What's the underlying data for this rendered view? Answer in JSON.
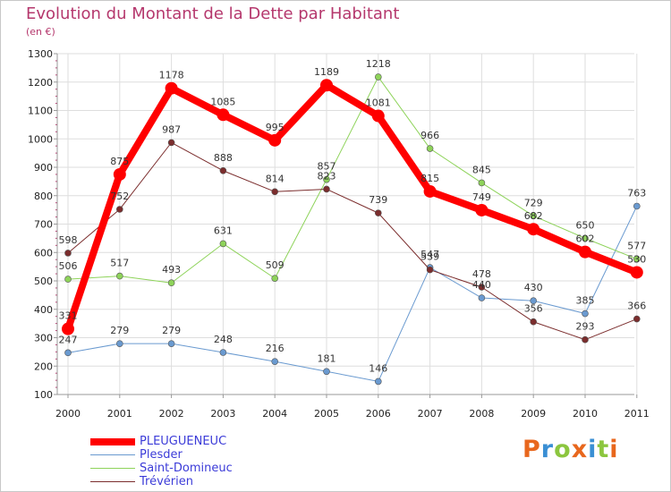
{
  "title": "Evolution du Montant de la Dette par Habitant",
  "subtitle": "(en €)",
  "brand": {
    "text": "Proxiti",
    "letter_colors": [
      "#e8671d",
      "#3a8fd4",
      "#8cc63f",
      "#e8671d",
      "#3a8fd4",
      "#8cc63f",
      "#e8671d"
    ]
  },
  "chart_data": {
    "type": "line",
    "x": [
      "2000",
      "2001",
      "2002",
      "2003",
      "2004",
      "2005",
      "2006",
      "2007",
      "2008",
      "2009",
      "2010",
      "2011"
    ],
    "y_ticks": [
      "100",
      "200",
      "300",
      "400",
      "500",
      "600",
      "700",
      "800",
      "900",
      "1000",
      "1100",
      "1200",
      "1300"
    ],
    "ylim": [
      100,
      1300
    ],
    "grid": true,
    "legend_position": "bottom-left",
    "series": [
      {
        "name": "PLEUGUENEUC",
        "color": "#ff0000",
        "width": 8,
        "marker": 7,
        "values": [
          331,
          875,
          1178,
          1085,
          995,
          1189,
          1081,
          815,
          749,
          682,
          602,
          530
        ],
        "labels": [
          "331",
          "875",
          "1178",
          "1085",
          "995",
          "1189",
          "1081",
          "815",
          "749",
          "682",
          "602",
          "530"
        ]
      },
      {
        "name": "Plesder",
        "color": "#6a9ad0",
        "width": 1,
        "marker": 3.5,
        "values": [
          247,
          279,
          279,
          248,
          216,
          181,
          146,
          547,
          440,
          430,
          385,
          763
        ],
        "labels": [
          "247",
          "279",
          "279",
          "248",
          "216",
          "181",
          "146",
          "547",
          "440",
          "430",
          "385",
          "763"
        ]
      },
      {
        "name": "Saint-Domineuc",
        "color": "#8ed35a",
        "width": 1,
        "marker": 3.5,
        "values": [
          506,
          517,
          493,
          631,
          509,
          857,
          1218,
          966,
          845,
          729,
          650,
          577
        ],
        "labels": [
          "506",
          "517",
          "493",
          "631",
          "509",
          "857",
          "1218",
          "966",
          "845",
          "729",
          "650",
          "577"
        ]
      },
      {
        "name": "Trévérien",
        "color": "#7b2d2d",
        "width": 1,
        "marker": 3.5,
        "values": [
          598,
          752,
          987,
          888,
          814,
          823,
          739,
          539,
          478,
          356,
          293,
          366
        ],
        "labels": [
          "598",
          "752",
          "987",
          "888",
          "814",
          "823",
          "739",
          "539",
          "478",
          "356",
          "293",
          "366"
        ]
      }
    ]
  }
}
